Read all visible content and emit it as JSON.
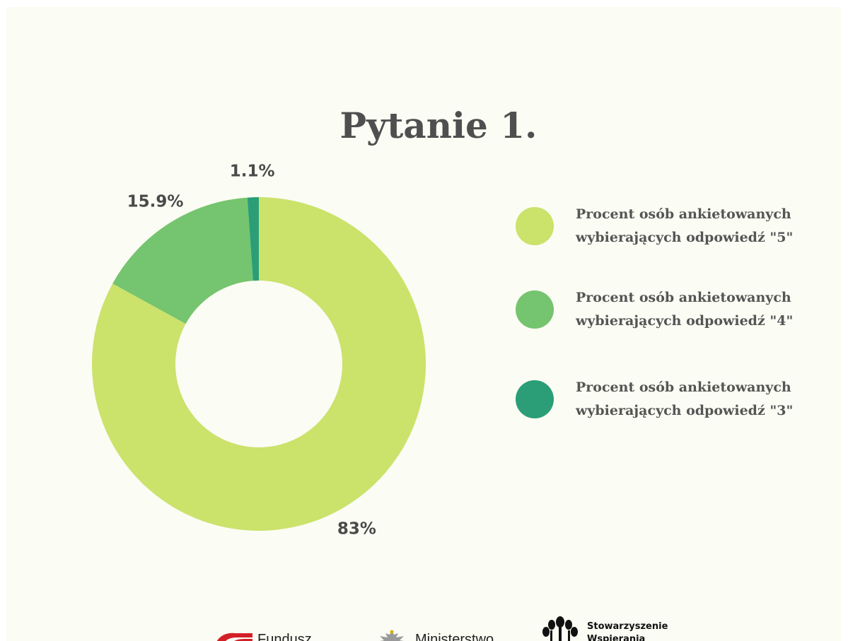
{
  "title": "Pytanie 1.",
  "chart_data": {
    "type": "pie",
    "title": "Pytanie 1.",
    "donut": true,
    "categories": [
      "Procent osób ankietowanych wybierających odpowiedź  \"5\"",
      "Procent osób ankietowanych wybierających odpowiedź  \"4\"",
      "Procent osób ankietowanych wybierających odpowiedź  \"3\""
    ],
    "values": [
      83,
      15.9,
      1.1
    ],
    "labels": [
      "83%",
      "15.9%",
      "1.1%"
    ],
    "colors": [
      "#cbe26b",
      "#75c46f",
      "#2b9e78"
    ],
    "legend_position": "right"
  },
  "legend": [
    {
      "line1": "Procent osób ankietowanych",
      "line2": "wybierających odpowiedź  \"5\"",
      "color": "#cbe26b"
    },
    {
      "line1": "Procent osób ankietowanych",
      "line2": "wybierających odpowiedź  \"4\"",
      "color": "#75c46f"
    },
    {
      "line1": "Procent osób ankietowanych",
      "line2": "wybierających odpowiedź  \"3\"",
      "color": "#2b9e78"
    }
  ],
  "logos": {
    "fundusz": "Fundusz",
    "ministerstwo": "Ministerstwo",
    "stowarzyszenie_line1": "Stowarzyszenie",
    "stowarzyszenie_line2": "Wspierania"
  }
}
